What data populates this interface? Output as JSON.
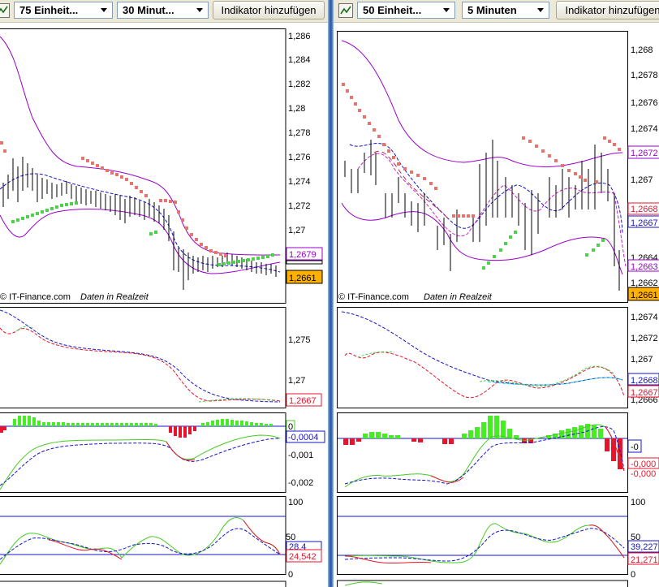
{
  "left": {
    "units_select": "75 Einheit...",
    "interval_select": "30 Minut...",
    "add_indicator_button": "Indikator hinzufügen",
    "watermark_copyright": "© IT-Finance.com",
    "watermark_realtime": "Daten in Realzeit",
    "price_axis": [
      "1,286",
      "1,284",
      "1,282",
      "1,28",
      "1,278",
      "1,276",
      "1,274",
      "1,272",
      "1,27"
    ],
    "price_tag_band": "1,2679",
    "price_tag_last": "1,2661",
    "ma_axis": [
      "1,275",
      "1,27"
    ],
    "ma_tag": "1,2667",
    "macd_axis": [
      "-0,001",
      "-0,002"
    ],
    "macd_tag_hist": "0",
    "macd_tag_line": "-0,0004",
    "stoch_axis": [
      "100",
      "50",
      "0"
    ],
    "stoch_tag_top": "28,4",
    "stoch_tag_bottom": "24,542"
  },
  "right": {
    "units_select": "50 Einheit...",
    "interval_select": "5 Minuten",
    "add_indicator_button": "Indikator hinzufügen",
    "watermark_copyright": "© IT-Finance.com",
    "watermark_realtime": "Daten in Realzeit",
    "price_axis": [
      "1,268",
      "1,2678",
      "1,2676",
      "1,2674",
      "1,267",
      "1,2664",
      "1,2662"
    ],
    "price_tag_band_upper": "1,2672",
    "price_tag_red": "1,2668",
    "price_tag_blue": "1,2667",
    "price_tag_band_lower": "1,2663",
    "price_tag_last": "1,2661",
    "ma_axis": [
      "1,2674",
      "1,2672",
      "1,267",
      "1,2666"
    ],
    "ma_tag_blue": "1,2668",
    "ma_tag_red": "1,2667",
    "macd_tag_hist": "-0",
    "macd_tag_a": "-0,000",
    "macd_tag_b": "-0,000",
    "stoch_axis": [
      "100",
      "50",
      "0"
    ],
    "stoch_tag_top": "39,227",
    "stoch_tag_bottom": "21,271"
  },
  "colors": {
    "bollinger": "#9900cc",
    "sar": "#e8736c",
    "sar_green": "#4cd14c",
    "ma_fast": "#e8142c",
    "ma_slow": "#1414c8",
    "hist_up": "#44ee22",
    "hist_down": "#e8142c",
    "last_price_bg": "#ffb000"
  },
  "icons": [
    "chart-type-icon",
    "dropdown-arrow-icon"
  ]
}
